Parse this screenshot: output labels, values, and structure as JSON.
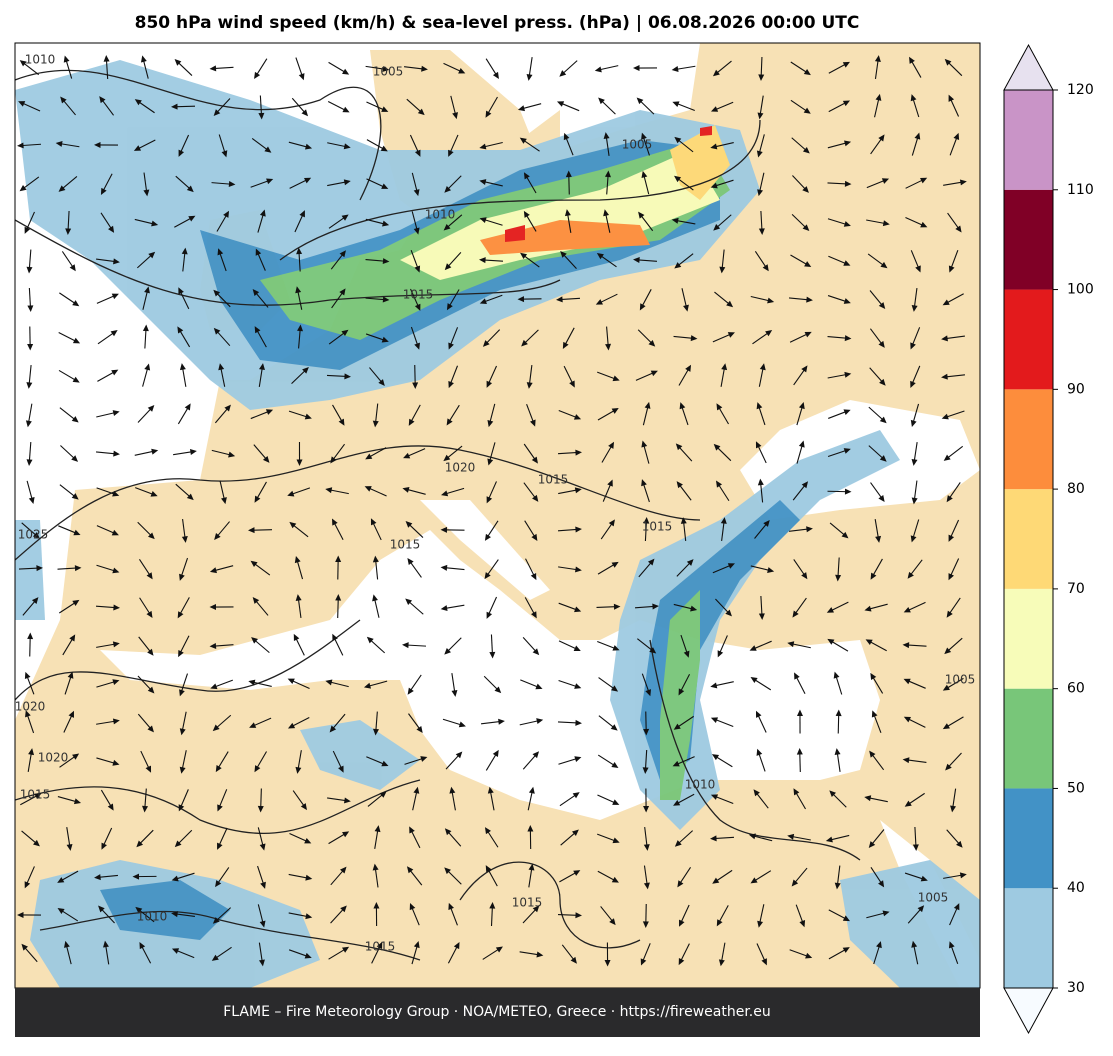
{
  "title": "850 hPa wind speed (km/h) & sea-level press. (hPa)  |  06.08.2026 00:00 UTC",
  "footer": "FLAME – Fire Meteorology Group · NOA/METEO, Greece · https://fireweather.eu",
  "colorbar": {
    "ticks": [
      30,
      40,
      50,
      60,
      70,
      80,
      90,
      100,
      110,
      120
    ],
    "colors": [
      "#9ecae1",
      "#4292c6",
      "#78c679",
      "#f7fcb9",
      "#fed976",
      "#fd8d3c",
      "#e31a1c",
      "#800026",
      "#c994c7"
    ],
    "under_color": "#f7fbff",
    "over_color": "#e7e1ef"
  },
  "isobar_labels": [
    1010,
    1005,
    1005,
    1010,
    1015,
    1025,
    1020,
    1015,
    1015,
    1015,
    1020,
    1020,
    1015,
    1010,
    1005,
    1015,
    1010,
    1015,
    1005
  ]
}
